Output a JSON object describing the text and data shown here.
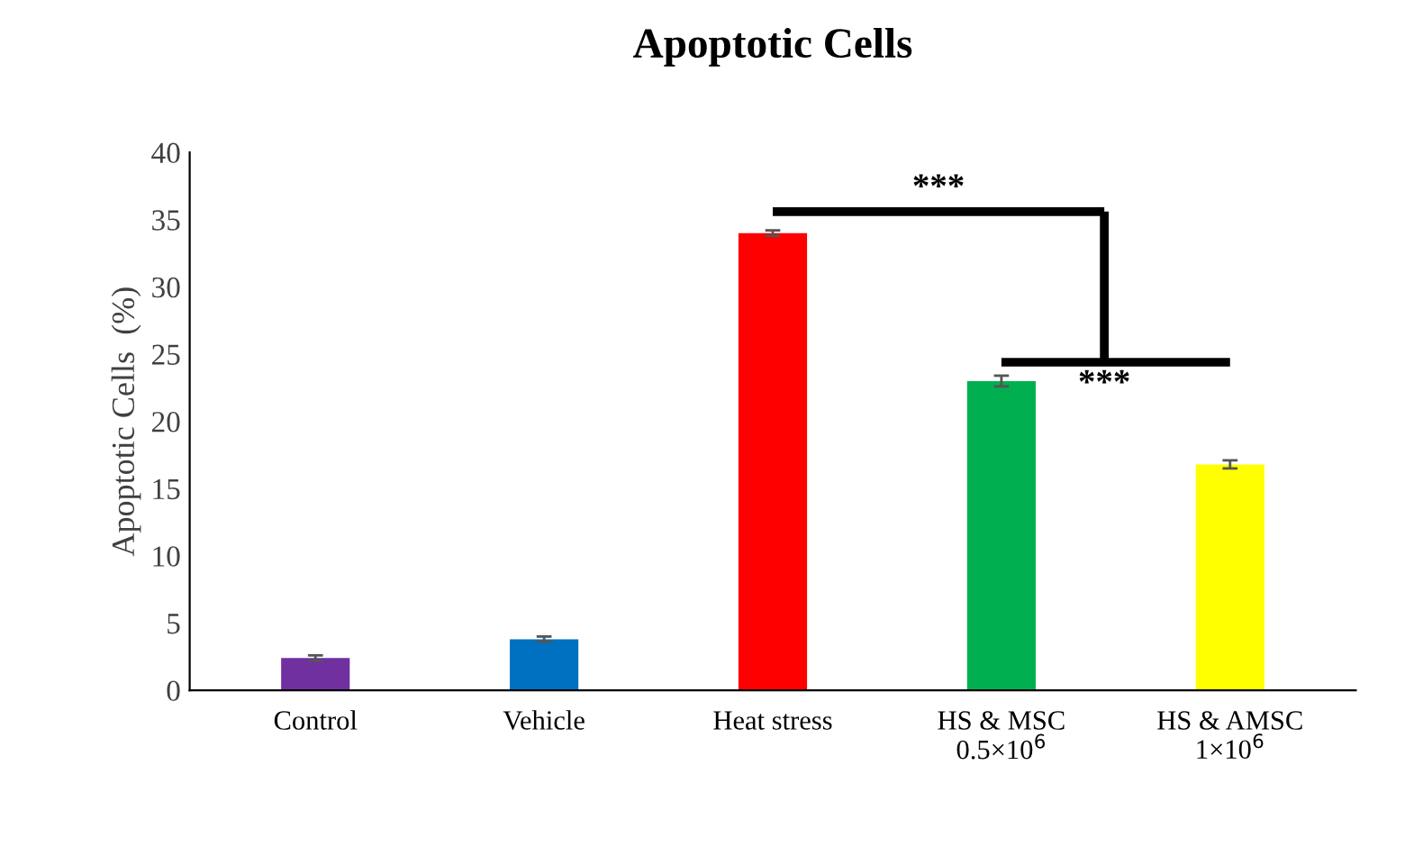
{
  "chart_data": {
    "type": "bar",
    "title": "Apoptotic Cells",
    "ylabel": "Apoptotic Cells  (%)",
    "categories": [
      "Control",
      "Vehicle",
      "Heat stress",
      "HS & MSC\n0.5×10$^{6}$",
      "HS & AMSC\n1×10$^{6}$"
    ],
    "values": [
      2.4,
      3.8,
      34.0,
      23.0,
      16.8
    ],
    "errors": [
      0.2,
      0.2,
      0.2,
      0.4,
      0.3
    ],
    "colors": [
      "#7030a0",
      "#0070c0",
      "#ff0000",
      "#00b050",
      "#ffff00"
    ],
    "ylim": [
      0,
      40
    ],
    "yticks": [
      0,
      5,
      10,
      15,
      20,
      25,
      30,
      35,
      40
    ],
    "grid": false,
    "legend": false,
    "annotations": [
      "***",
      "***"
    ]
  }
}
